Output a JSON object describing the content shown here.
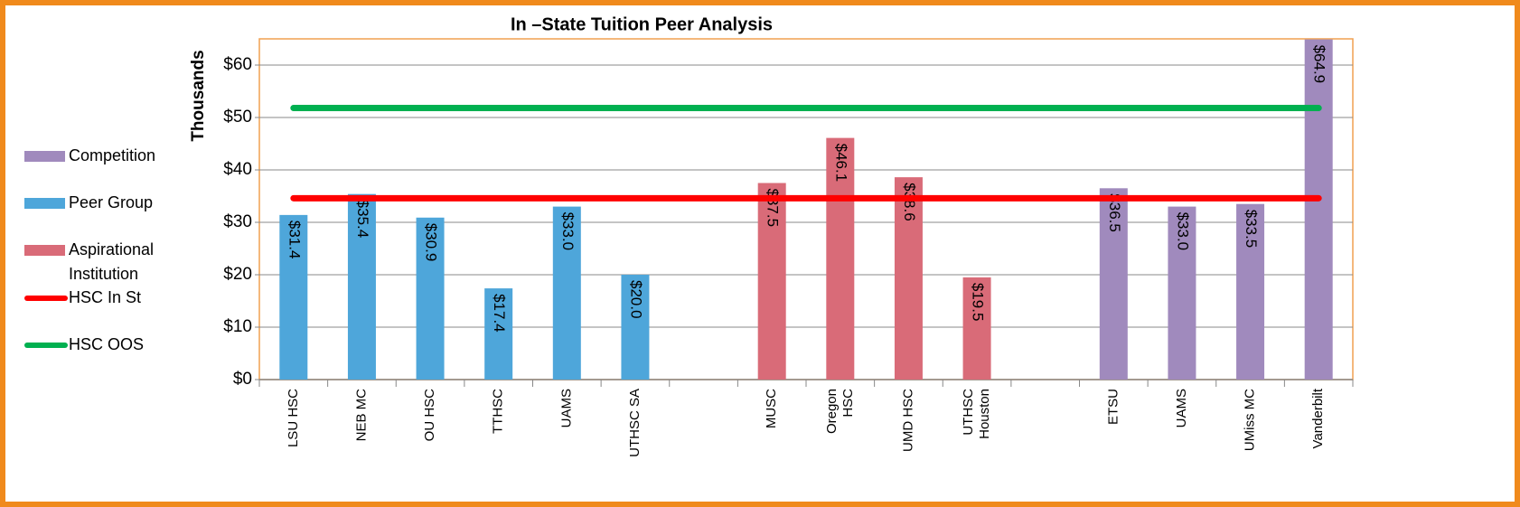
{
  "chart_data": {
    "type": "bar",
    "title": "In –State Tuition Peer Analysis",
    "ylabel": "Thousands",
    "categories": [
      "LSU HSC",
      "NEB MC",
      "OU HSC",
      "TTHSC",
      "UAMS",
      "UTHSC SA",
      null,
      "MUSC",
      "Oregon HSC",
      "UMD HSC",
      "UTHSC Houston",
      null,
      "ETSU",
      "UAMS",
      "UMiss MC",
      "Vanderbilt"
    ],
    "series": [
      {
        "name": "Competition",
        "type": "bar",
        "color": "#a08abd",
        "values": [
          null,
          null,
          null,
          null,
          null,
          null,
          null,
          null,
          null,
          null,
          null,
          null,
          36.5,
          33.0,
          33.5,
          64.9
        ],
        "value_labels": [
          null,
          null,
          null,
          null,
          null,
          null,
          null,
          null,
          null,
          null,
          null,
          null,
          "$36.5",
          "$33.0",
          "$33.5",
          "$64.9"
        ]
      },
      {
        "name": "Peer Group",
        "type": "bar",
        "color": "#4ea6da",
        "values": [
          31.4,
          35.4,
          30.9,
          17.4,
          33.0,
          20.0,
          null,
          null,
          null,
          null,
          null,
          null,
          null,
          null,
          null,
          null
        ],
        "value_labels": [
          "$31.4",
          "$35.4",
          "$30.9",
          "$17.4",
          "$33.0",
          "$20.0",
          null,
          null,
          null,
          null,
          null,
          null,
          null,
          null,
          null,
          null
        ]
      },
      {
        "name": "Aspirational Institution",
        "type": "bar",
        "color": "#d96b78",
        "values": [
          null,
          null,
          null,
          null,
          null,
          null,
          null,
          37.5,
          46.1,
          38.6,
          19.5,
          null,
          null,
          null,
          null,
          null
        ],
        "value_labels": [
          null,
          null,
          null,
          null,
          null,
          null,
          null,
          "$37.5",
          "$46.1",
          "$38.6",
          "$19.5",
          null,
          null,
          null,
          null,
          null
        ]
      },
      {
        "name": "HSC In St",
        "type": "line",
        "color": "#ff0000",
        "values": [
          34.6,
          34.6,
          34.6,
          34.6,
          34.6,
          34.6,
          34.6,
          34.6,
          34.6,
          34.6,
          34.6,
          34.6,
          34.6,
          34.6,
          34.6,
          34.6
        ]
      },
      {
        "name": "HSC OOS",
        "type": "line",
        "color": "#00b050",
        "values": [
          51.8,
          51.8,
          51.8,
          51.8,
          51.8,
          51.8,
          51.8,
          51.8,
          51.8,
          51.8,
          51.8,
          51.8,
          51.8,
          51.8,
          51.8,
          51.8
        ]
      }
    ],
    "ylim": [
      0,
      65
    ],
    "yticks": [
      {
        "value": 0,
        "label": "$0"
      },
      {
        "value": 10,
        "label": "$10"
      },
      {
        "value": 20,
        "label": "$20"
      },
      {
        "value": 30,
        "label": "$30"
      },
      {
        "value": 40,
        "label": "$40"
      },
      {
        "value": 50,
        "label": "$50"
      },
      {
        "value": 60,
        "label": "$60"
      }
    ],
    "grid": true,
    "legend": "left"
  }
}
